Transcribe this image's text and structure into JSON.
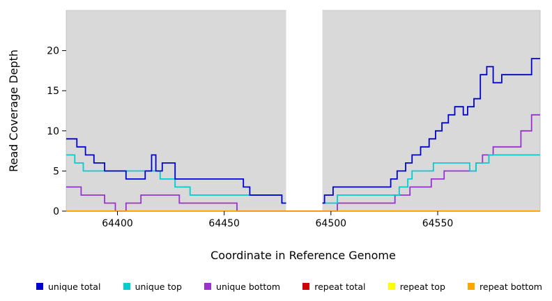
{
  "chart_data": {
    "type": "line",
    "subtype": "step",
    "title": "",
    "xlabel": "Coordinate in Reference Genome",
    "ylabel": "Read Coverage Depth",
    "xlim": [
      64376,
      64598
    ],
    "ylim": [
      0,
      25
    ],
    "x_ticks": [
      64400,
      64450,
      64500,
      64550
    ],
    "y_ticks": [
      0,
      5,
      10,
      15,
      20
    ],
    "plot_bg": "#D9D9D9",
    "plot_border": "#BDBDBD",
    "grid": false,
    "legend_position": "bottom",
    "gap_region": {
      "x_start": 64479,
      "x_end": 64496,
      "color": "#FFFFFF"
    },
    "series": [
      {
        "name": "unique total",
        "color": "#0000CD",
        "steps": [
          [
            64376,
            9
          ],
          [
            64381,
            8
          ],
          [
            64385,
            7
          ],
          [
            64389,
            6
          ],
          [
            64394,
            5
          ],
          [
            64404,
            4
          ],
          [
            64413,
            5
          ],
          [
            64416,
            7
          ],
          [
            64418,
            5
          ],
          [
            64421,
            6
          ],
          [
            64427,
            4
          ],
          [
            64459,
            3
          ],
          [
            64462,
            2
          ],
          [
            64477,
            1
          ],
          [
            64497,
            2
          ],
          [
            64501,
            3
          ],
          [
            64528,
            4
          ],
          [
            64531,
            5
          ],
          [
            64535,
            6
          ],
          [
            64538,
            7
          ],
          [
            64542,
            8
          ],
          [
            64546,
            9
          ],
          [
            64549,
            10
          ],
          [
            64552,
            11
          ],
          [
            64555,
            12
          ],
          [
            64558,
            13
          ],
          [
            64562,
            12
          ],
          [
            64564,
            13
          ],
          [
            64567,
            14
          ],
          [
            64570,
            17
          ],
          [
            64573,
            18
          ],
          [
            64576,
            16
          ],
          [
            64580,
            17
          ],
          [
            64594,
            19
          ]
        ]
      },
      {
        "name": "unique top",
        "color": "#00CDCD",
        "steps": [
          [
            64376,
            7
          ],
          [
            64380,
            6
          ],
          [
            64384,
            5
          ],
          [
            64420,
            4
          ],
          [
            64427,
            3
          ],
          [
            64434,
            2
          ],
          [
            64477,
            1
          ],
          [
            64503,
            2
          ],
          [
            64532,
            3
          ],
          [
            64536,
            4
          ],
          [
            64538,
            5
          ],
          [
            64548,
            6
          ],
          [
            64565,
            5
          ],
          [
            64568,
            6
          ],
          [
            64574,
            7
          ]
        ]
      },
      {
        "name": "unique bottom",
        "color": "#9932CC",
        "steps": [
          [
            64376,
            3
          ],
          [
            64383,
            2
          ],
          [
            64394,
            1
          ],
          [
            64399,
            0
          ],
          [
            64404,
            1
          ],
          [
            64411,
            2
          ],
          [
            64429,
            1
          ],
          [
            64456,
            0
          ],
          [
            64503,
            1
          ],
          [
            64530,
            2
          ],
          [
            64537,
            3
          ],
          [
            64547,
            4
          ],
          [
            64553,
            5
          ],
          [
            64568,
            6
          ],
          [
            64571,
            7
          ],
          [
            64576,
            8
          ],
          [
            64589,
            10
          ],
          [
            64594,
            12
          ]
        ]
      },
      {
        "name": "repeat total",
        "color": "#CD0000",
        "steps": [
          [
            64376,
            0
          ]
        ]
      },
      {
        "name": "repeat top",
        "color": "#FFFF00",
        "steps": [
          [
            64376,
            0
          ]
        ]
      },
      {
        "name": "repeat bottom",
        "color": "#FFA500",
        "steps": [
          [
            64376,
            0
          ]
        ]
      }
    ],
    "draw_order_below_mask": [
      "repeat total",
      "repeat top",
      "unique bottom",
      "unique top",
      "unique total"
    ],
    "draw_order_above_mask": [
      "repeat bottom"
    ]
  },
  "legend": {
    "items": [
      {
        "label": "unique total",
        "color": "#0000CD"
      },
      {
        "label": "unique top",
        "color": "#00CDCD"
      },
      {
        "label": "unique bottom",
        "color": "#9932CC"
      },
      {
        "label": "repeat total",
        "color": "#CD0000"
      },
      {
        "label": "repeat top",
        "color": "#FFFF00"
      },
      {
        "label": "repeat bottom",
        "color": "#FFA500"
      }
    ]
  }
}
